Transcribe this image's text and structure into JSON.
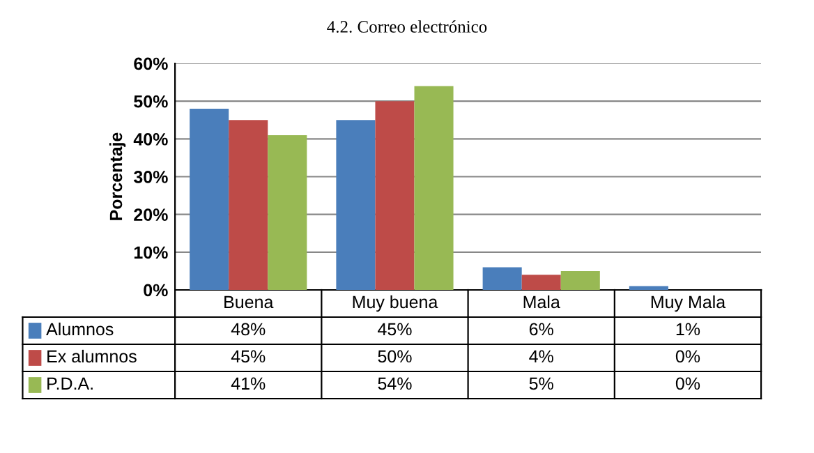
{
  "chart_data": {
    "type": "bar",
    "title": "4.2. Correo electrónico",
    "ylabel": "Porcentaje",
    "categories": [
      "Buena",
      "Muy buena",
      "Mala",
      "Muy Mala"
    ],
    "series": [
      {
        "name": "Alumnos",
        "color": "#4a7ebb",
        "values": [
          48,
          45,
          6,
          1
        ],
        "value_labels": [
          "48%",
          "45%",
          "6%",
          "1%"
        ]
      },
      {
        "name": "Ex alumnos",
        "color": "#be4b48",
        "values": [
          45,
          50,
          4,
          0
        ],
        "value_labels": [
          "45%",
          "50%",
          "4%",
          "0%"
        ]
      },
      {
        "name": "P.D.A.",
        "color": "#98b954",
        "values": [
          41,
          54,
          5,
          0
        ],
        "value_labels": [
          "41%",
          "54%",
          "5%",
          "0%"
        ]
      }
    ],
    "ylim": [
      0,
      60
    ],
    "yticks": [
      {
        "value": 0,
        "label": "0%"
      },
      {
        "value": 10,
        "label": "10%"
      },
      {
        "value": 20,
        "label": "20%"
      },
      {
        "value": 30,
        "label": "30%"
      },
      {
        "value": 40,
        "label": "40%"
      },
      {
        "value": 50,
        "label": "50%"
      },
      {
        "value": 60,
        "label": "60%"
      }
    ],
    "grid": "y",
    "legend": "bottom"
  }
}
